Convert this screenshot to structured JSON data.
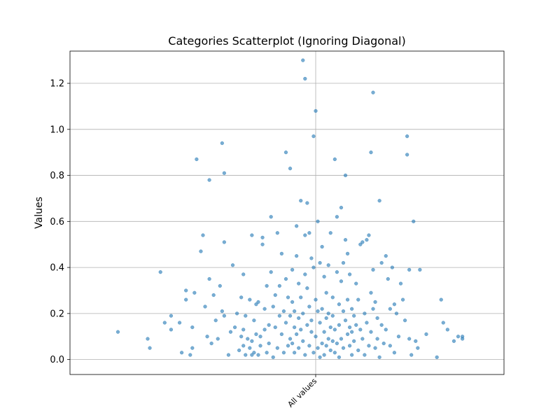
{
  "chart_data": {
    "type": "scatter",
    "title": "Categories Scatterplot (Ignoring Diagonal)",
    "xlabel": "",
    "ylabel": "Values",
    "categories": [
      "All values"
    ],
    "ylim": [
      -0.065,
      1.34
    ],
    "xlim": [
      -1,
      1
    ],
    "yticks": [
      0.0,
      0.2,
      0.4,
      0.6,
      0.8,
      1.0,
      1.2
    ],
    "grid": true,
    "marker_color": "#1f77b4",
    "points": [
      {
        "x": -0.93,
        "y": 0.12
      },
      {
        "x": -0.79,
        "y": 0.09
      },
      {
        "x": -0.78,
        "y": 0.05
      },
      {
        "x": -0.73,
        "y": 0.38
      },
      {
        "x": -0.71,
        "y": 0.16
      },
      {
        "x": -0.68,
        "y": 0.19
      },
      {
        "x": -0.68,
        "y": 0.13
      },
      {
        "x": -0.64,
        "y": 0.16
      },
      {
        "x": -0.63,
        "y": 0.03
      },
      {
        "x": -0.61,
        "y": 0.3
      },
      {
        "x": -0.61,
        "y": 0.26
      },
      {
        "x": -0.59,
        "y": 0.02
      },
      {
        "x": -0.58,
        "y": 0.14
      },
      {
        "x": -0.58,
        "y": 0.05
      },
      {
        "x": -0.57,
        "y": 0.29
      },
      {
        "x": -0.56,
        "y": 0.87
      },
      {
        "x": -0.54,
        "y": 0.47
      },
      {
        "x": -0.53,
        "y": 0.54
      },
      {
        "x": -0.52,
        "y": 0.23
      },
      {
        "x": -0.51,
        "y": 0.1
      },
      {
        "x": -0.5,
        "y": 0.78
      },
      {
        "x": -0.5,
        "y": 0.35
      },
      {
        "x": -0.49,
        "y": 0.07
      },
      {
        "x": -0.48,
        "y": 0.28
      },
      {
        "x": -0.47,
        "y": 0.17
      },
      {
        "x": -0.46,
        "y": 0.09
      },
      {
        "x": -0.45,
        "y": 0.32
      },
      {
        "x": -0.44,
        "y": 0.94
      },
      {
        "x": -0.44,
        "y": 0.21
      },
      {
        "x": -0.43,
        "y": 0.81
      },
      {
        "x": -0.43,
        "y": 0.51
      },
      {
        "x": -0.43,
        "y": 0.19
      },
      {
        "x": -0.41,
        "y": 0.02
      },
      {
        "x": -0.4,
        "y": 0.12
      },
      {
        "x": -0.39,
        "y": 0.41
      },
      {
        "x": -0.38,
        "y": 0.14
      },
      {
        "x": -0.37,
        "y": 0.2
      },
      {
        "x": -0.36,
        "y": 0.04
      },
      {
        "x": -0.35,
        "y": 0.1
      },
      {
        "x": -0.35,
        "y": 0.27
      },
      {
        "x": -0.34,
        "y": 0.13
      },
      {
        "x": -0.34,
        "y": 0.37
      },
      {
        "x": -0.34,
        "y": 0.06
      },
      {
        "x": -0.33,
        "y": 0.02
      },
      {
        "x": -0.33,
        "y": 0.19
      },
      {
        "x": -0.32,
        "y": 0.09
      },
      {
        "x": -0.31,
        "y": 0.26
      },
      {
        "x": -0.31,
        "y": 0.05
      },
      {
        "x": -0.3,
        "y": 0.02
      },
      {
        "x": -0.3,
        "y": 0.08
      },
      {
        "x": -0.3,
        "y": 0.54
      },
      {
        "x": -0.29,
        "y": 0.17
      },
      {
        "x": -0.29,
        "y": 0.03
      },
      {
        "x": -0.28,
        "y": 0.24
      },
      {
        "x": -0.28,
        "y": 0.11
      },
      {
        "x": -0.27,
        "y": 0.02
      },
      {
        "x": -0.27,
        "y": 0.25
      },
      {
        "x": -0.26,
        "y": 0.1
      },
      {
        "x": -0.26,
        "y": 0.06
      },
      {
        "x": -0.25,
        "y": 0.53
      },
      {
        "x": -0.25,
        "y": 0.5
      },
      {
        "x": -0.24,
        "y": 0.13
      },
      {
        "x": -0.24,
        "y": 0.22
      },
      {
        "x": -0.23,
        "y": 0.03
      },
      {
        "x": -0.23,
        "y": 0.32
      },
      {
        "x": -0.22,
        "y": 0.15
      },
      {
        "x": -0.22,
        "y": 0.07
      },
      {
        "x": -0.21,
        "y": 0.62
      },
      {
        "x": -0.21,
        "y": 0.38
      },
      {
        "x": -0.2,
        "y": 0.23
      },
      {
        "x": -0.2,
        "y": 0.01
      },
      {
        "x": -0.19,
        "y": 0.14
      },
      {
        "x": -0.19,
        "y": 0.28
      },
      {
        "x": -0.18,
        "y": 0.55
      },
      {
        "x": -0.18,
        "y": 0.05
      },
      {
        "x": -0.17,
        "y": 0.19
      },
      {
        "x": -0.17,
        "y": 0.32
      },
      {
        "x": -0.16,
        "y": 0.11
      },
      {
        "x": -0.16,
        "y": 0.46
      },
      {
        "x": -0.15,
        "y": 0.03
      },
      {
        "x": -0.15,
        "y": 0.21
      },
      {
        "x": -0.14,
        "y": 0.9
      },
      {
        "x": -0.14,
        "y": 0.16
      },
      {
        "x": -0.14,
        "y": 0.35
      },
      {
        "x": -0.13,
        "y": 0.06
      },
      {
        "x": -0.13,
        "y": 0.27
      },
      {
        "x": -0.12,
        "y": 0.83
      },
      {
        "x": -0.12,
        "y": 0.19
      },
      {
        "x": -0.12,
        "y": 0.09
      },
      {
        "x": -0.11,
        "y": 0.07
      },
      {
        "x": -0.11,
        "y": 0.25
      },
      {
        "x": -0.11,
        "y": 0.39
      },
      {
        "x": -0.1,
        "y": 0.14
      },
      {
        "x": -0.1,
        "y": 0.03
      },
      {
        "x": -0.1,
        "y": 0.21
      },
      {
        "x": -0.09,
        "y": 0.58
      },
      {
        "x": -0.09,
        "y": 0.45
      },
      {
        "x": -0.09,
        "y": 0.11
      },
      {
        "x": -0.08,
        "y": 0.33
      },
      {
        "x": -0.08,
        "y": 0.18
      },
      {
        "x": -0.08,
        "y": 0.05
      },
      {
        "x": -0.07,
        "y": 0.69
      },
      {
        "x": -0.07,
        "y": 0.27
      },
      {
        "x": -0.07,
        "y": 0.13
      },
      {
        "x": -0.06,
        "y": 1.3
      },
      {
        "x": -0.06,
        "y": 0.08
      },
      {
        "x": -0.06,
        "y": 0.2
      },
      {
        "x": -0.05,
        "y": 1.22
      },
      {
        "x": -0.05,
        "y": 0.54
      },
      {
        "x": -0.05,
        "y": 0.37
      },
      {
        "x": -0.05,
        "y": 0.02
      },
      {
        "x": -0.04,
        "y": 0.15
      },
      {
        "x": -0.04,
        "y": 0.68
      },
      {
        "x": -0.04,
        "y": 0.31
      },
      {
        "x": -0.03,
        "y": 0.23
      },
      {
        "x": -0.03,
        "y": 0.06
      },
      {
        "x": -0.03,
        "y": 0.55
      },
      {
        "x": -0.02,
        "y": 0.12
      },
      {
        "x": -0.02,
        "y": 0.44
      },
      {
        "x": -0.02,
        "y": 0.17
      },
      {
        "x": -0.01,
        "y": 0.97
      },
      {
        "x": -0.01,
        "y": 0.4
      },
      {
        "x": -0.01,
        "y": 0.03
      },
      {
        "x": 0.0,
        "y": 0.26
      },
      {
        "x": 0.0,
        "y": 1.08
      },
      {
        "x": 0.0,
        "y": 0.1
      },
      {
        "x": 0.01,
        "y": 0.6
      },
      {
        "x": 0.01,
        "y": 0.21
      },
      {
        "x": 0.01,
        "y": 0.05
      },
      {
        "x": 0.02,
        "y": 0.42
      },
      {
        "x": 0.02,
        "y": 0.16
      },
      {
        "x": 0.02,
        "y": 0.01
      },
      {
        "x": 0.03,
        "y": 0.49
      },
      {
        "x": 0.03,
        "y": 0.22
      },
      {
        "x": 0.03,
        "y": 0.07
      },
      {
        "x": 0.04,
        "y": 0.12
      },
      {
        "x": 0.04,
        "y": 0.36
      },
      {
        "x": 0.04,
        "y": 0.02
      },
      {
        "x": 0.05,
        "y": 0.18
      },
      {
        "x": 0.05,
        "y": 0.29
      },
      {
        "x": 0.05,
        "y": 0.06
      },
      {
        "x": 0.06,
        "y": 0.09
      },
      {
        "x": 0.06,
        "y": 0.41
      },
      {
        "x": 0.06,
        "y": 0.2
      },
      {
        "x": 0.07,
        "y": 0.04
      },
      {
        "x": 0.07,
        "y": 0.14
      },
      {
        "x": 0.07,
        "y": 0.55
      },
      {
        "x": 0.08,
        "y": 0.27
      },
      {
        "x": 0.08,
        "y": 0.08
      },
      {
        "x": 0.08,
        "y": 0.19
      },
      {
        "x": 0.09,
        "y": 0.03
      },
      {
        "x": 0.09,
        "y": 0.13
      },
      {
        "x": 0.09,
        "y": 0.87
      },
      {
        "x": 0.1,
        "y": 0.38
      },
      {
        "x": 0.1,
        "y": 0.07
      },
      {
        "x": 0.1,
        "y": 0.62
      },
      {
        "x": 0.11,
        "y": 0.24
      },
      {
        "x": 0.11,
        "y": 0.15
      },
      {
        "x": 0.11,
        "y": 0.01
      },
      {
        "x": 0.12,
        "y": 0.66
      },
      {
        "x": 0.12,
        "y": 0.34
      },
      {
        "x": 0.12,
        "y": 0.09
      },
      {
        "x": 0.13,
        "y": 0.42
      },
      {
        "x": 0.13,
        "y": 0.21
      },
      {
        "x": 0.13,
        "y": 0.05
      },
      {
        "x": 0.14,
        "y": 0.8
      },
      {
        "x": 0.14,
        "y": 0.52
      },
      {
        "x": 0.14,
        "y": 0.17
      },
      {
        "x": 0.15,
        "y": 0.11
      },
      {
        "x": 0.15,
        "y": 0.46
      },
      {
        "x": 0.15,
        "y": 0.26
      },
      {
        "x": 0.16,
        "y": 0.06
      },
      {
        "x": 0.16,
        "y": 0.14
      },
      {
        "x": 0.16,
        "y": 0.37
      },
      {
        "x": 0.17,
        "y": 0.22
      },
      {
        "x": 0.17,
        "y": 0.02
      },
      {
        "x": 0.17,
        "y": 0.12
      },
      {
        "x": 0.18,
        "y": 0.19
      },
      {
        "x": 0.18,
        "y": 0.08
      },
      {
        "x": 0.19,
        "y": 0.33
      },
      {
        "x": 0.19,
        "y": 0.15
      },
      {
        "x": 0.2,
        "y": 0.26
      },
      {
        "x": 0.2,
        "y": 0.04
      },
      {
        "x": 0.21,
        "y": 0.5
      },
      {
        "x": 0.21,
        "y": 0.13
      },
      {
        "x": 0.22,
        "y": 0.51
      },
      {
        "x": 0.22,
        "y": 0.09
      },
      {
        "x": 0.23,
        "y": 0.2
      },
      {
        "x": 0.23,
        "y": 0.02
      },
      {
        "x": 0.24,
        "y": 0.16
      },
      {
        "x": 0.24,
        "y": 0.52
      },
      {
        "x": 0.25,
        "y": 0.54
      },
      {
        "x": 0.25,
        "y": 0.06
      },
      {
        "x": 0.26,
        "y": 0.9
      },
      {
        "x": 0.26,
        "y": 0.29
      },
      {
        "x": 0.26,
        "y": 0.12
      },
      {
        "x": 0.27,
        "y": 0.39
      },
      {
        "x": 0.27,
        "y": 0.22
      },
      {
        "x": 0.27,
        "y": 1.16
      },
      {
        "x": 0.28,
        "y": 0.05
      },
      {
        "x": 0.28,
        "y": 0.25
      },
      {
        "x": 0.29,
        "y": 0.09
      },
      {
        "x": 0.29,
        "y": 0.18
      },
      {
        "x": 0.3,
        "y": 0.69
      },
      {
        "x": 0.3,
        "y": 0.01
      },
      {
        "x": 0.31,
        "y": 0.15
      },
      {
        "x": 0.31,
        "y": 0.42
      },
      {
        "x": 0.32,
        "y": 0.07
      },
      {
        "x": 0.33,
        "y": 0.45
      },
      {
        "x": 0.33,
        "y": 0.13
      },
      {
        "x": 0.34,
        "y": 0.35
      },
      {
        "x": 0.35,
        "y": 0.22
      },
      {
        "x": 0.35,
        "y": 0.06
      },
      {
        "x": 0.36,
        "y": 0.4
      },
      {
        "x": 0.37,
        "y": 0.24
      },
      {
        "x": 0.37,
        "y": 0.03
      },
      {
        "x": 0.38,
        "y": 0.2
      },
      {
        "x": 0.39,
        "y": 0.1
      },
      {
        "x": 0.4,
        "y": 0.33
      },
      {
        "x": 0.41,
        "y": 0.26
      },
      {
        "x": 0.42,
        "y": 0.17
      },
      {
        "x": 0.43,
        "y": 0.97
      },
      {
        "x": 0.43,
        "y": 0.89
      },
      {
        "x": 0.44,
        "y": 0.09
      },
      {
        "x": 0.44,
        "y": 0.39
      },
      {
        "x": 0.45,
        "y": 0.02
      },
      {
        "x": 0.46,
        "y": 0.6
      },
      {
        "x": 0.47,
        "y": 0.08
      },
      {
        "x": 0.48,
        "y": 0.05
      },
      {
        "x": 0.49,
        "y": 0.39
      },
      {
        "x": 0.52,
        "y": 0.11
      },
      {
        "x": 0.57,
        "y": 0.01
      },
      {
        "x": 0.59,
        "y": 0.26
      },
      {
        "x": 0.6,
        "y": 0.16
      },
      {
        "x": 0.62,
        "y": 0.13
      },
      {
        "x": 0.65,
        "y": 0.08
      },
      {
        "x": 0.67,
        "y": 0.1
      },
      {
        "x": 0.69,
        "y": 0.1
      },
      {
        "x": 0.69,
        "y": 0.09
      }
    ]
  }
}
